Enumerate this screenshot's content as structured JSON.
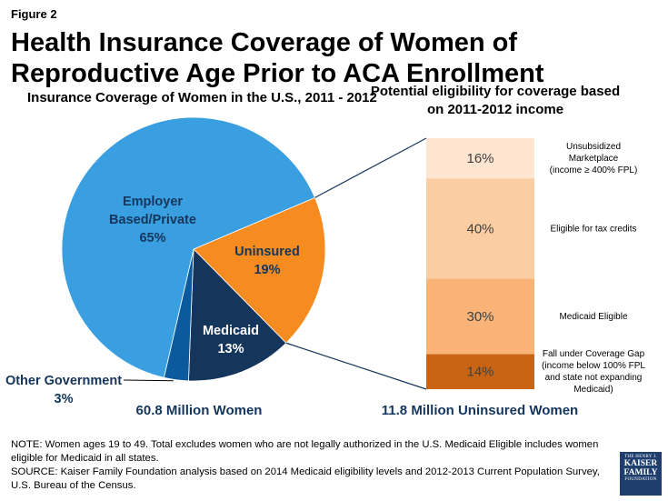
{
  "figure_label": "Figure 2",
  "title": "Health Insurance Coverage of Women of Reproductive Age Prior to ACA Enrollment",
  "note": "NOTE: Women ages 19 to 49.  Total excludes women who are not legally authorized in the U.S. Medicaid Eligible includes women eligible for Medicaid in all states.",
  "source": "SOURCE: Kaiser Family Foundation analysis based on 2014 Medicaid eligibility levels and 2012-2013 Current Population Survey, U.S. Bureau of the Census.",
  "logo": {
    "line1": "THE HENRY J.",
    "line2": "KAISER",
    "line3": "FAMILY",
    "line4": "FOUNDATION"
  },
  "chart_data": [
    {
      "type": "pie",
      "title": "Insurance Coverage of Women in the U.S., 2011 - 2012",
      "total_label": "60.8 Million Women",
      "slices": [
        {
          "label_lines": [
            "Employer",
            "Based/Private"
          ],
          "value": 65,
          "value_label": "65%",
          "color": "#3a9fe0"
        },
        {
          "label_lines": [
            "Uninsured"
          ],
          "value": 19,
          "value_label": "19%",
          "color": "#f68b1f"
        },
        {
          "label_lines": [
            "Medicaid"
          ],
          "value": 13,
          "value_label": "13%",
          "color": "#14365c"
        },
        {
          "label_lines": [
            "Other Government"
          ],
          "value": 3,
          "value_label": "3%",
          "color": "#0b5a9e"
        }
      ]
    },
    {
      "type": "bar",
      "stacked": true,
      "title": "Potential eligibility for coverage based on 2011-2012 income",
      "total_label": "11.8 Million Uninsured Women",
      "segments": [
        {
          "value": 14,
          "value_label": "14%",
          "color": "#c86413",
          "annotation": [
            "Fall under Coverage Gap",
            "(income below 100% FPL",
            "and state not expanding",
            "Medicaid)"
          ]
        },
        {
          "value": 30,
          "value_label": "30%",
          "color": "#f9b377",
          "annotation": [
            "Medicaid Eligible"
          ]
        },
        {
          "value": 40,
          "value_label": "40%",
          "color": "#fbcda3",
          "annotation": [
            "Eligible for tax credits"
          ]
        },
        {
          "value": 16,
          "value_label": "16%",
          "color": "#fde5cf",
          "annotation": [
            "Unsubsidized",
            "Marketplace",
            "(income ≥ 400% FPL)"
          ]
        }
      ]
    }
  ]
}
